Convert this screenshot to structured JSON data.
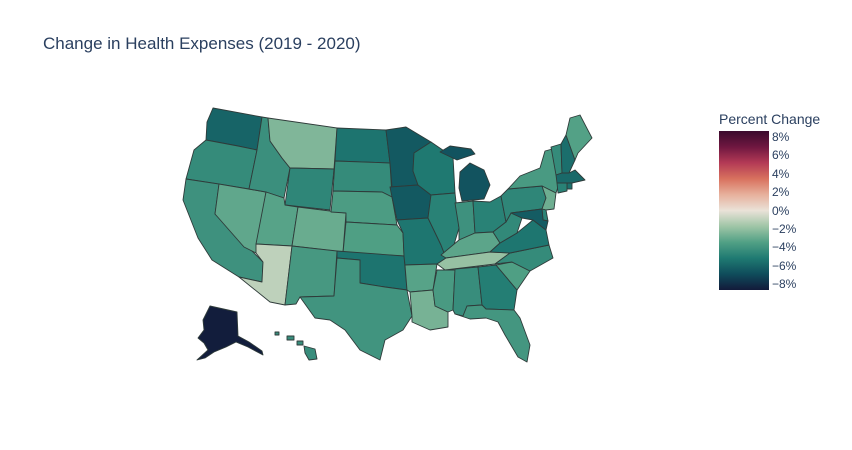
{
  "title": "Change in Health Expenses (2019 - 2020)",
  "colorbar": {
    "title": "Percent Change",
    "ticks": [
      "8%",
      "6%",
      "4%",
      "2%",
      "0%",
      "−2%",
      "−4%",
      "−6%",
      "−8%"
    ],
    "range": [
      -8.6,
      8.6
    ],
    "colorscale": [
      "#121a3a",
      "#0f4c5b",
      "#1f7a72",
      "#51a085",
      "#9fc5a6",
      "#eae2d8",
      "#e7b09c",
      "#d8715e",
      "#b33a55",
      "#6f1740",
      "#3b0a2d"
    ]
  },
  "chart_data": {
    "type": "choropleth",
    "scope": "usa",
    "title": "Change in Health Expenses (2019 - 2020)",
    "colorbar_title": "Percent Change",
    "values": {
      "WA": -6.0,
      "OR": -4.4,
      "CA": -4.1,
      "NV": -3.1,
      "ID": -4.2,
      "MT": -2.4,
      "WY": -4.6,
      "UT": -3.3,
      "AZ": -1.0,
      "CO": -2.9,
      "NM": -3.8,
      "ND": -5.4,
      "SD": -4.4,
      "NE": -3.6,
      "KS": -3.5,
      "OK": -5.4,
      "TX": -4.0,
      "MN": -6.4,
      "IA": -6.4,
      "MO": -5.3,
      "AR": -3.3,
      "LA": -2.6,
      "WI": -5.2,
      "IL": -4.8,
      "MI": -6.6,
      "IN": -4.1,
      "OH": -4.8,
      "KY": -3.2,
      "TN": -1.9,
      "MS": -3.7,
      "AL": -4.3,
      "GA": -5.0,
      "FL": -3.9,
      "SC": -3.5,
      "NC": -4.4,
      "VA": -5.3,
      "WV": -4.5,
      "PA": -4.6,
      "NY": -3.7,
      "VT": -4.4,
      "NH": -5.6,
      "ME": -3.4,
      "MA": -5.8,
      "RI": -5.5,
      "CT": -4.8,
      "NJ": -2.8,
      "DE": -4.7,
      "MD": -6.3,
      "AK": -8.5,
      "HI": -4.3
    }
  }
}
